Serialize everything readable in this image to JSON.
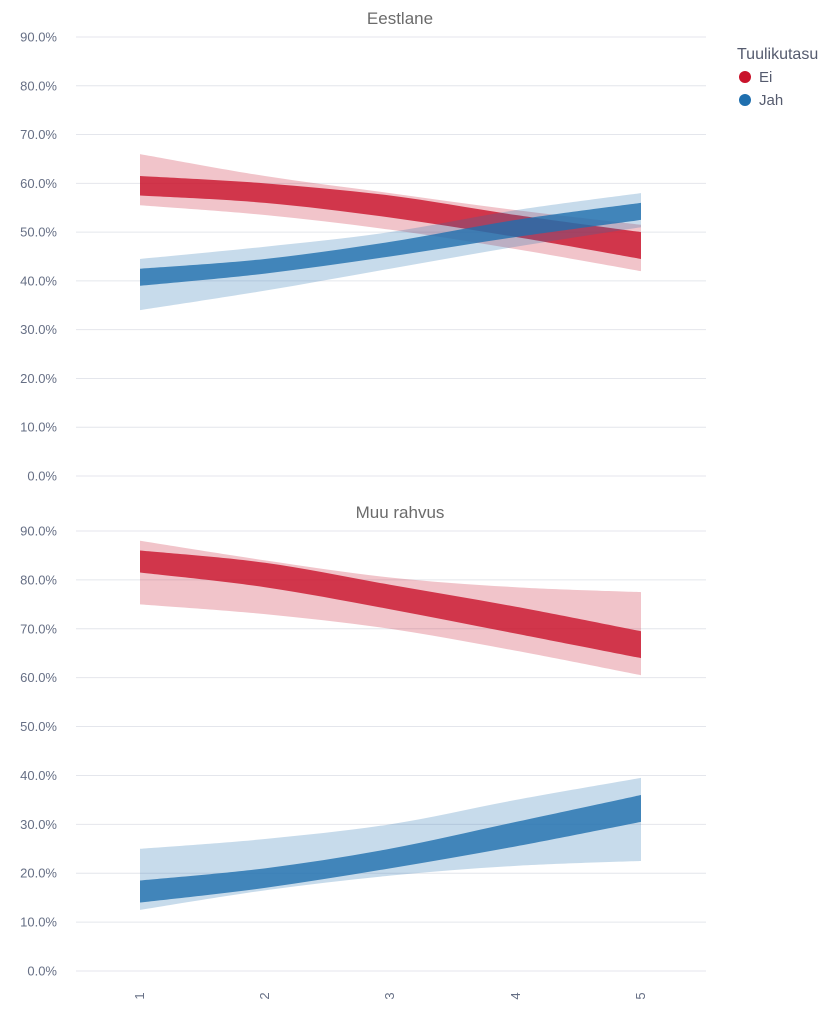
{
  "chart_data": {
    "type": "line",
    "legend": {
      "title": "Tuulikutasu",
      "placement": "top-right",
      "entries": [
        {
          "name": "Ei",
          "color": "#c9132b"
        },
        {
          "name": "Jah",
          "color": "#1f6fae"
        }
      ]
    },
    "x": [
      1,
      2,
      3,
      4,
      5
    ],
    "x_tick_labels": [
      "1",
      "2",
      "3",
      "4",
      "5"
    ],
    "y_tick_labels": [
      "0.0%",
      "10.0%",
      "20.0%",
      "30.0%",
      "40.0%",
      "50.0%",
      "60.0%",
      "70.0%",
      "80.0%",
      "90.0%"
    ],
    "y_ticks": [
      0,
      10,
      20,
      30,
      40,
      50,
      60,
      70,
      80,
      90
    ],
    "ylim": [
      0,
      90
    ],
    "panels": [
      {
        "title": "Eestlane",
        "series": [
          {
            "name": "Ei",
            "inner_upper": [
              61.5,
              60.0,
              57.5,
              53.5,
              50.0
            ],
            "inner_lower": [
              57.5,
              56.0,
              53.0,
              49.0,
              44.5
            ],
            "outer_upper": [
              66.0,
              61.5,
              58.0,
              54.5,
              51.5
            ],
            "outer_lower": [
              55.5,
              53.5,
              50.5,
              46.5,
              42.0
            ]
          },
          {
            "name": "Jah",
            "inner_upper": [
              42.5,
              44.5,
              48.0,
              52.5,
              56.0
            ],
            "inner_lower": [
              39.0,
              41.5,
              45.0,
              49.0,
              52.5
            ],
            "outer_upper": [
              44.5,
              47.0,
              50.0,
              54.5,
              58.0
            ],
            "outer_lower": [
              34.0,
              38.0,
              42.5,
              47.0,
              51.0
            ]
          }
        ]
      },
      {
        "title": "Muu rahvus",
        "series": [
          {
            "name": "Ei",
            "inner_upper": [
              86.0,
              83.5,
              79.0,
              74.5,
              69.5
            ],
            "inner_lower": [
              81.5,
              78.5,
              74.0,
              69.0,
              64.0
            ],
            "outer_upper": [
              88.0,
              84.0,
              80.5,
              78.5,
              77.5
            ],
            "outer_lower": [
              75.0,
              73.0,
              70.0,
              65.5,
              60.5
            ]
          },
          {
            "name": "Jah",
            "inner_upper": [
              18.5,
              21.0,
              25.0,
              30.5,
              36.0
            ],
            "inner_lower": [
              14.0,
              17.0,
              21.0,
              25.5,
              30.5
            ],
            "outer_upper": [
              25.0,
              27.0,
              30.0,
              35.0,
              39.5
            ],
            "outer_lower": [
              12.5,
              16.5,
              19.5,
              21.5,
              22.5
            ]
          }
        ]
      }
    ]
  }
}
